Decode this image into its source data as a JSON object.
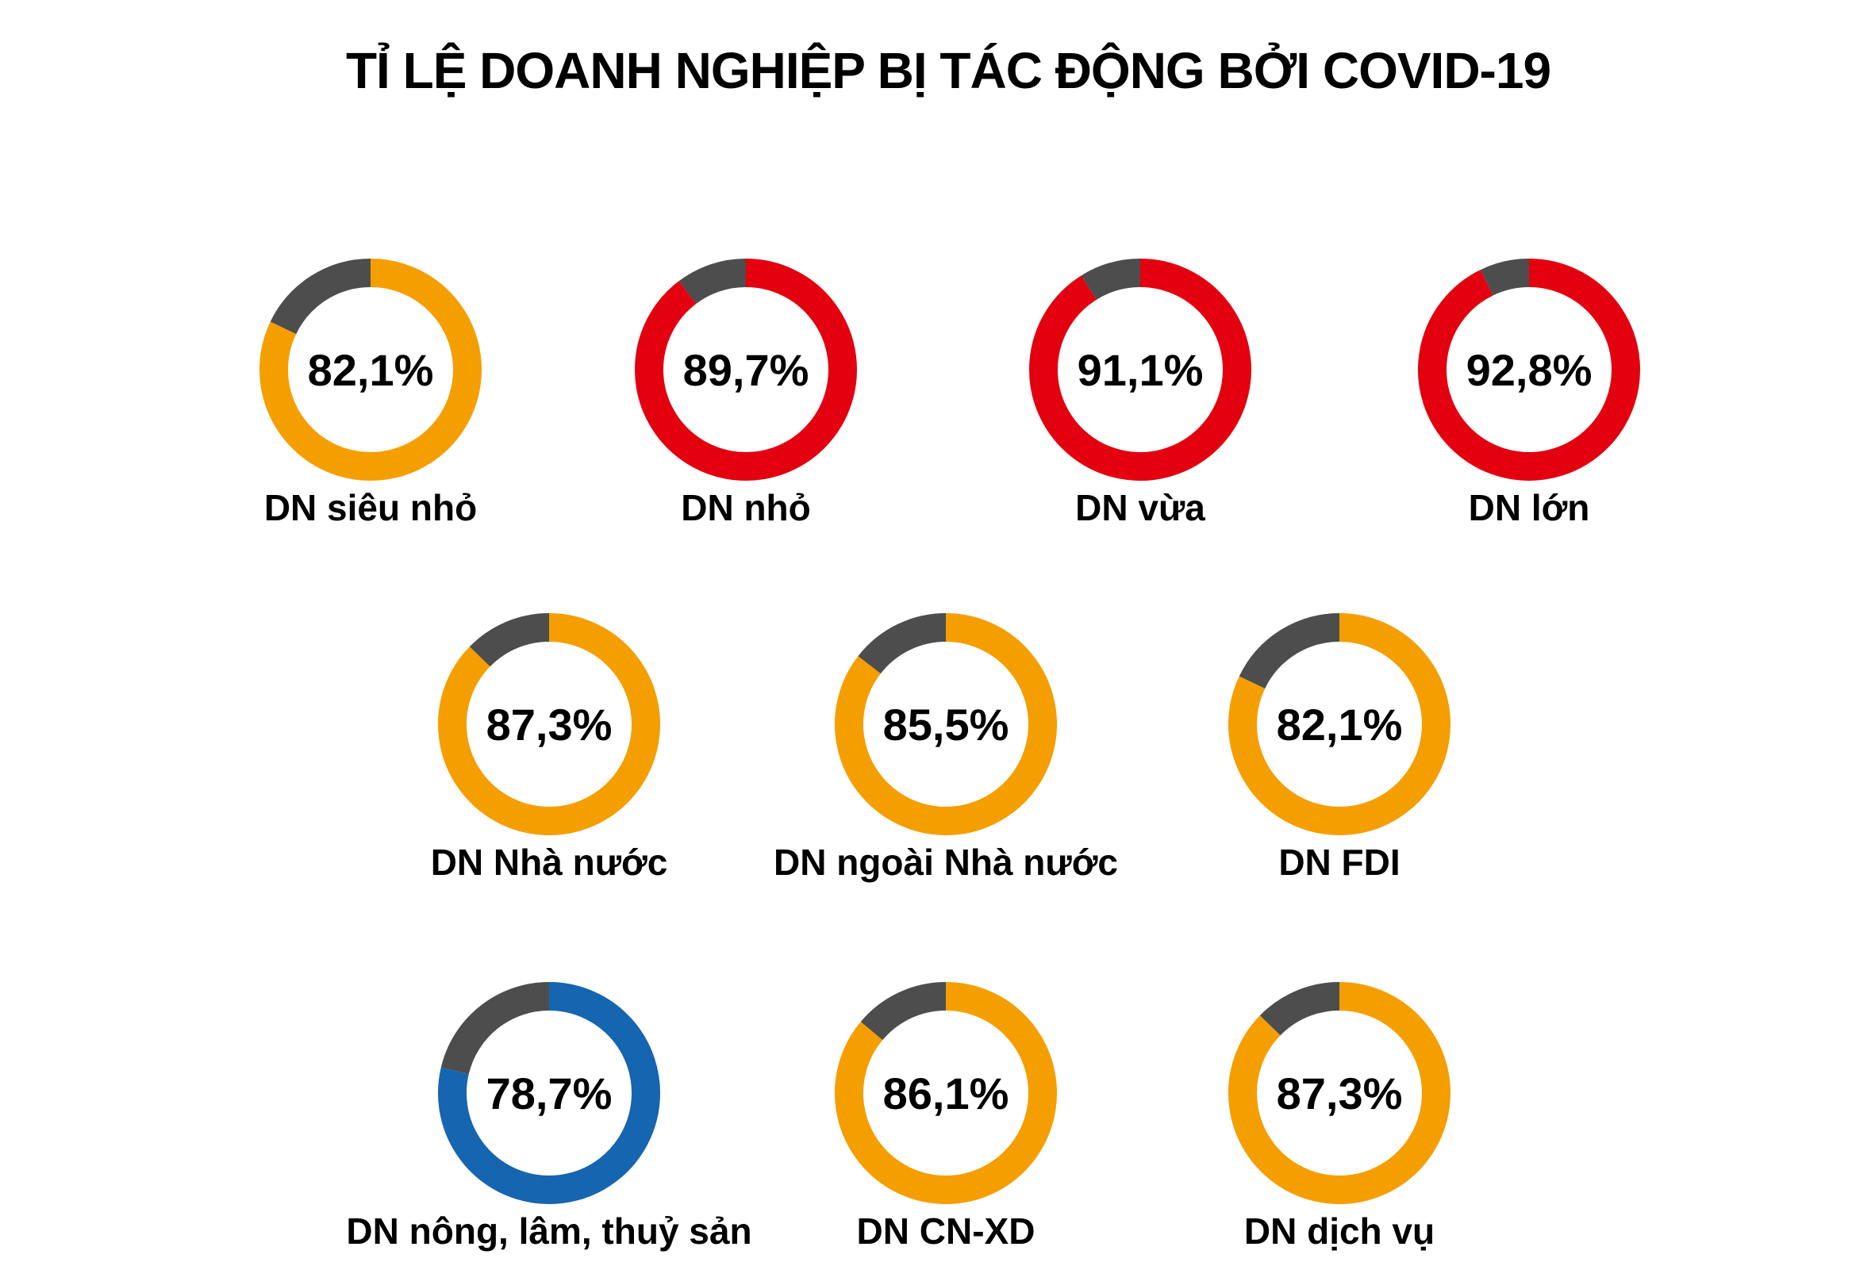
{
  "chart_data": {
    "type": "pie",
    "variant": "donut",
    "title": "TỈ LỆ DOANH NGHIỆP BỊ TÁC ĐỘNG BỞI COVID-19",
    "remainder_color": "#4d4d4d",
    "rows": [
      [
        {
          "label": "DN siêu nhỏ",
          "value": 82.1,
          "value_text": "82,1%",
          "color": "#f59e00"
        },
        {
          "label": "DN nhỏ",
          "value": 89.7,
          "value_text": "89,7%",
          "color": "#e3000f"
        },
        {
          "label": "DN vừa",
          "value": 91.1,
          "value_text": "91,1%",
          "color": "#e3000f"
        },
        {
          "label": "DN lớn",
          "value": 92.8,
          "value_text": "92,8%",
          "color": "#e3000f"
        }
      ],
      [
        {
          "label": "DN Nhà nước",
          "value": 87.3,
          "value_text": "87,3%",
          "color": "#f59e00"
        },
        {
          "label": "DN ngoài Nhà nước",
          "value": 85.5,
          "value_text": "85,5%",
          "color": "#f59e00"
        },
        {
          "label": "DN FDI",
          "value": 82.1,
          "value_text": "82,1%",
          "color": "#f59e00"
        }
      ],
      [
        {
          "label": "DN nông, lâm, thuỷ sản",
          "value": 78.7,
          "value_text": "78,7%",
          "color": "#1565b0"
        },
        {
          "label": "DN CN-XD",
          "value": 86.1,
          "value_text": "86,1%",
          "color": "#f59e00"
        },
        {
          "label": "DN dịch vụ",
          "value": 87.3,
          "value_text": "87,3%",
          "color": "#f59e00"
        }
      ]
    ]
  }
}
